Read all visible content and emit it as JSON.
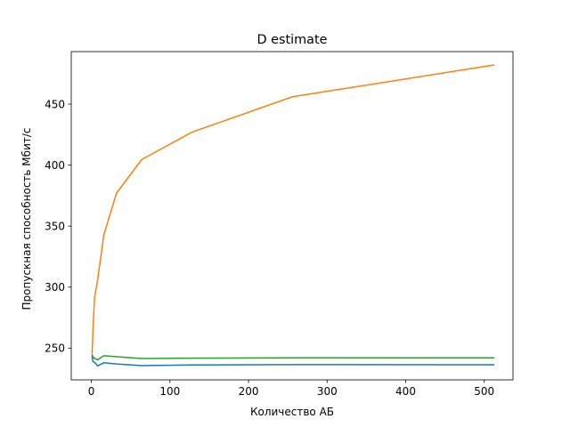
{
  "chart_data": {
    "type": "line",
    "title": "D estimate",
    "xlabel": "Количество АБ",
    "ylabel": "Пропускная способность Мбит/с",
    "xlim": [
      -25.55,
      536.55
    ],
    "ylim": [
      224.0,
      493.0
    ],
    "xticks": [
      0,
      100,
      200,
      300,
      400,
      500
    ],
    "yticks": [
      250,
      300,
      350,
      400,
      450
    ],
    "grid": false,
    "legend": "none",
    "series": [
      {
        "color": "#1f77b4",
        "x": [
          1,
          2,
          4,
          8,
          16,
          32,
          64,
          128,
          256,
          512
        ],
        "y": [
          243.0,
          239.0,
          238.5,
          235.5,
          238.0,
          237.0,
          235.7,
          236.2,
          236.5,
          236.4
        ]
      },
      {
        "color": "#ff7f0e",
        "x": [
          1,
          2,
          4,
          8,
          16,
          32,
          64,
          128,
          256,
          512
        ],
        "y": [
          246.0,
          263.0,
          291.0,
          306.0,
          343.0,
          377.0,
          404.5,
          427.0,
          456.0,
          482.0
        ]
      },
      {
        "color": "#2ca02c",
        "x": [
          1,
          2,
          4,
          8,
          16,
          32,
          64,
          128,
          256,
          512
        ],
        "y": [
          244.5,
          243.0,
          241.5,
          240.5,
          243.8,
          243.0,
          241.5,
          241.8,
          242.0,
          242.0
        ]
      }
    ]
  }
}
